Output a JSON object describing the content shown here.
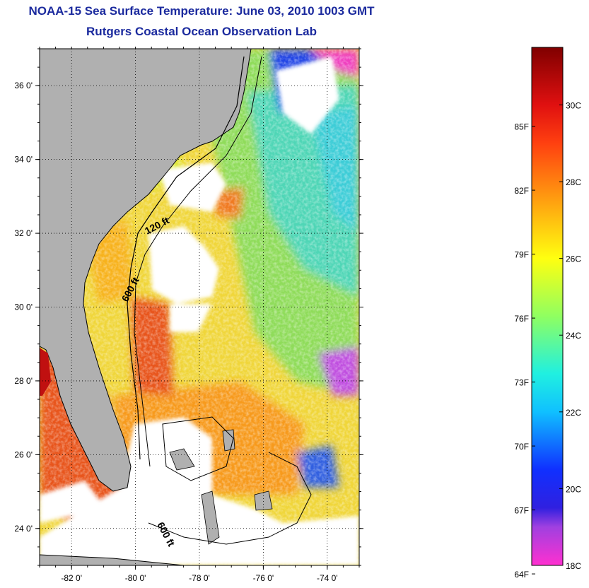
{
  "title": {
    "line1": "NOAA-15 Sea Surface Temperature:  June 03, 2010 1003 GMT",
    "line2": "Rutgers Coastal Ocean Observation Lab"
  },
  "map": {
    "lon_range": [
      -83,
      -73
    ],
    "lat_range": [
      23,
      37
    ],
    "lon_ticks": [
      {
        "value": -82,
        "label": "-82 0'"
      },
      {
        "value": -80,
        "label": "-80 0'"
      },
      {
        "value": -78,
        "label": "-78 0'"
      },
      {
        "value": -76,
        "label": "-76 0'"
      },
      {
        "value": -74,
        "label": "-74 0'"
      }
    ],
    "lat_ticks": [
      {
        "value": 24,
        "label": "24 0'"
      },
      {
        "value": 26,
        "label": "26 0'"
      },
      {
        "value": 28,
        "label": "28 0'"
      },
      {
        "value": 30,
        "label": "30 0'"
      },
      {
        "value": 32,
        "label": "32 0'"
      },
      {
        "value": 34,
        "label": "34 0'"
      },
      {
        "value": 36,
        "label": "36 0'"
      }
    ],
    "grid": "dotted",
    "contour_labels": [
      "120 ft",
      "600 ft",
      "600 ft"
    ],
    "colors": {
      "land": "#b0b0b0",
      "cloud": "#ffffff",
      "warm": "#e8541c",
      "orange": "#f79a1e",
      "yellow": "#f0e82a",
      "green": "#8fdc5a",
      "cyan": "#3ccdd7",
      "blue": "#2244e6",
      "magenta": "#f040c0"
    }
  },
  "colorbar": {
    "f_labels": [
      {
        "label": "85F",
        "f": 85
      },
      {
        "label": "82F",
        "f": 82
      },
      {
        "label": "79F",
        "f": 79
      },
      {
        "label": "76F",
        "f": 76
      },
      {
        "label": "73F",
        "f": 73
      },
      {
        "label": "70F",
        "f": 70
      },
      {
        "label": "67F",
        "f": 67
      },
      {
        "label": "64F",
        "f": 64
      }
    ],
    "c_labels": [
      {
        "label": "30C",
        "c": 30
      },
      {
        "label": "28C",
        "c": 28
      },
      {
        "label": "26C",
        "c": 26
      },
      {
        "label": "24C",
        "c": 24
      },
      {
        "label": "22C",
        "c": 22
      },
      {
        "label": "20C",
        "c": 20
      },
      {
        "label": "18C",
        "c": 18
      }
    ],
    "c_range": [
      18,
      31.5
    ],
    "stops": [
      {
        "c": 18,
        "color": "#ff30d0"
      },
      {
        "c": 19.0,
        "color": "#a040e0"
      },
      {
        "c": 19.5,
        "color": "#3020e0"
      },
      {
        "c": 20.5,
        "color": "#1030ff"
      },
      {
        "c": 22,
        "color": "#10c0ff"
      },
      {
        "c": 23,
        "color": "#20f0e0"
      },
      {
        "c": 24.5,
        "color": "#90ff60"
      },
      {
        "c": 26,
        "color": "#ffff10"
      },
      {
        "c": 27,
        "color": "#ffc010"
      },
      {
        "c": 28,
        "color": "#ff8010"
      },
      {
        "c": 29,
        "color": "#ff4010"
      },
      {
        "c": 30,
        "color": "#e01010"
      },
      {
        "c": 31.5,
        "color": "#800000"
      }
    ]
  }
}
